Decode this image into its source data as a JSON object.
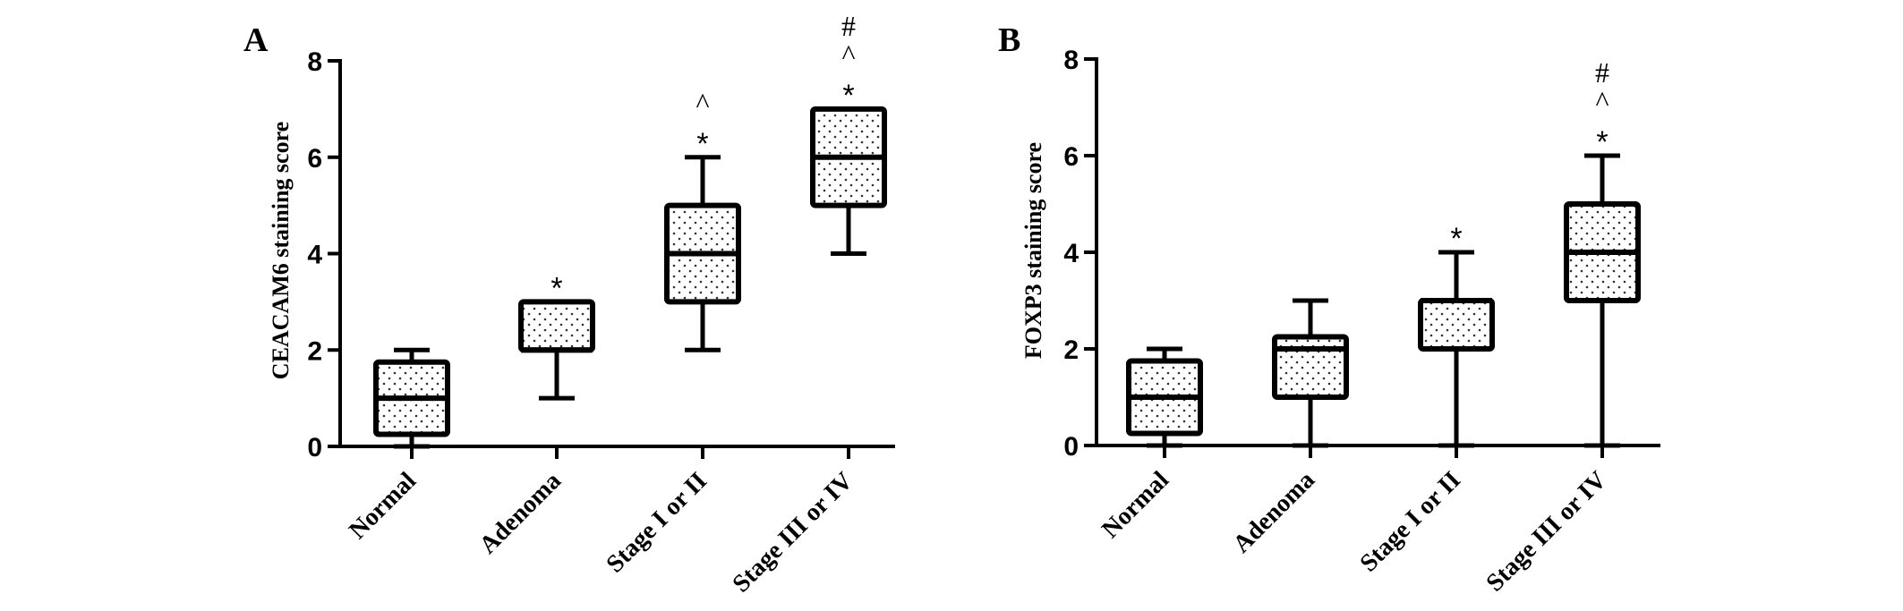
{
  "chart_data": [
    {
      "type": "box",
      "panel": "A",
      "ylabel": "CEACAM6 staining score",
      "xlabel": "",
      "ylim": [
        0,
        8
      ],
      "yticks": [
        0,
        2,
        4,
        6,
        8
      ],
      "categories": [
        "Normal",
        "Adenoma",
        "Stage I or II",
        "Stage III or IV"
      ],
      "boxes": [
        {
          "category": "Normal",
          "min": 0,
          "q1": 0.25,
          "median": 1,
          "q3": 1.75,
          "max": 2,
          "annotations": []
        },
        {
          "category": "Adenoma",
          "min": 1,
          "q1": 2,
          "median": 2,
          "q3": 3,
          "max": 3,
          "annotations": [
            "*"
          ]
        },
        {
          "category": "Stage I or II",
          "min": 2,
          "q1": 3,
          "median": 4,
          "q3": 5,
          "max": 6,
          "annotations": [
            "*",
            "^"
          ]
        },
        {
          "category": "Stage III or IV",
          "min": 4,
          "q1": 5,
          "median": 6,
          "q3": 7,
          "max": 7,
          "annotations": [
            "*",
            "^",
            "#"
          ]
        }
      ]
    },
    {
      "type": "box",
      "panel": "B",
      "ylabel": "FOXP3 staining score",
      "xlabel": "",
      "ylim": [
        0,
        8
      ],
      "yticks": [
        0,
        2,
        4,
        6,
        8
      ],
      "categories": [
        "Normal",
        "Adenoma",
        "Stage I or II",
        "Stage III or IV"
      ],
      "boxes": [
        {
          "category": "Normal",
          "min": 0,
          "q1": 0.25,
          "median": 1,
          "q3": 1.75,
          "max": 2,
          "annotations": []
        },
        {
          "category": "Adenoma",
          "min": 0,
          "q1": 1,
          "median": 2,
          "q3": 2.25,
          "max": 3,
          "annotations": []
        },
        {
          "category": "Stage I or II",
          "min": 0,
          "q1": 2,
          "median": 3,
          "q3": 3,
          "max": 4,
          "annotations": [
            "*"
          ]
        },
        {
          "category": "Stage III or IV",
          "min": 0,
          "q1": 3,
          "median": 4,
          "q3": 5,
          "max": 6,
          "annotations": [
            "*",
            "^",
            "#"
          ]
        }
      ]
    }
  ]
}
